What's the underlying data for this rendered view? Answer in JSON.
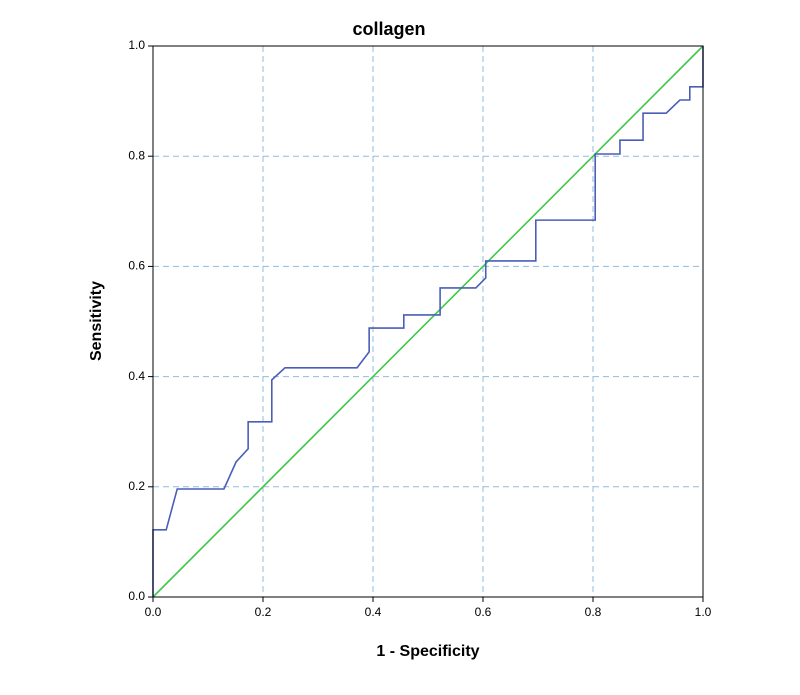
{
  "chart_data": {
    "type": "line",
    "title": "collagen",
    "x_label": "1 - Specificity",
    "y_label": "Sensitivity",
    "series": [
      {
        "color": "#4a5eb8",
        "x": [
          0,
          0,
          0.024,
          0.044,
          0.129,
          0.151,
          0.173,
          0.173,
          0.216,
          0.216,
          0.24,
          0.371,
          0.393,
          0.393,
          0.456,
          0.456,
          0.522,
          0.522,
          0.587,
          0.605,
          0.605,
          0.696,
          0.696,
          0.804,
          0.804,
          0.849,
          0.849,
          0.891,
          0.891,
          0.933,
          0.958,
          0.976,
          0.976,
          1,
          1
        ],
        "values": [
          0,
          0.122,
          0.122,
          0.196,
          0.196,
          0.245,
          0.269,
          0.318,
          0.318,
          0.394,
          0.416,
          0.416,
          0.445,
          0.488,
          0.488,
          0.512,
          0.512,
          0.561,
          0.561,
          0.579,
          0.61,
          0.61,
          0.684,
          0.684,
          0.804,
          0.804,
          0.829,
          0.829,
          0.878,
          0.878,
          0.902,
          0.902,
          0.926,
          0.926,
          1
        ]
      },
      {
        "color": "#3ec74a",
        "x": [
          0,
          1
        ],
        "values": [
          0,
          1
        ]
      }
    ],
    "xlim": [
      0,
      1
    ],
    "ylim": [
      0,
      1
    ],
    "xticks": [
      {
        "value": 0,
        "label": "0.0"
      },
      0.2,
      0.4,
      0.6,
      0.8,
      {
        "value": 1,
        "label": "1.0"
      }
    ],
    "yticks": [
      {
        "value": 0,
        "label": "0.0"
      },
      0.2,
      0.4,
      0.6,
      0.8,
      {
        "value": 1,
        "label": "1.0"
      }
    ],
    "grid": true,
    "grid_color": "#8fbce0"
  }
}
